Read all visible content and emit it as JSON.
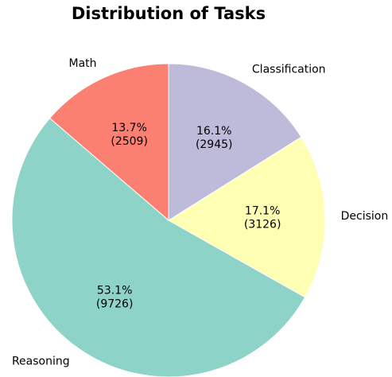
{
  "chart_data": {
    "type": "pie",
    "title": "Distribution of Tasks",
    "categories": [
      "Math",
      "Reasoning",
      "Decision",
      "Classification"
    ],
    "values": [
      2509,
      9726,
      3126,
      2945
    ],
    "value_labels": [
      "13.7%\n(2509)",
      "53.1%\n(9726)",
      "17.1%\n(3126)",
      "16.1%\n(2945)"
    ],
    "colors": [
      "#fb8072",
      "#8dd3c7",
      "#ffffb3",
      "#bebada"
    ]
  }
}
